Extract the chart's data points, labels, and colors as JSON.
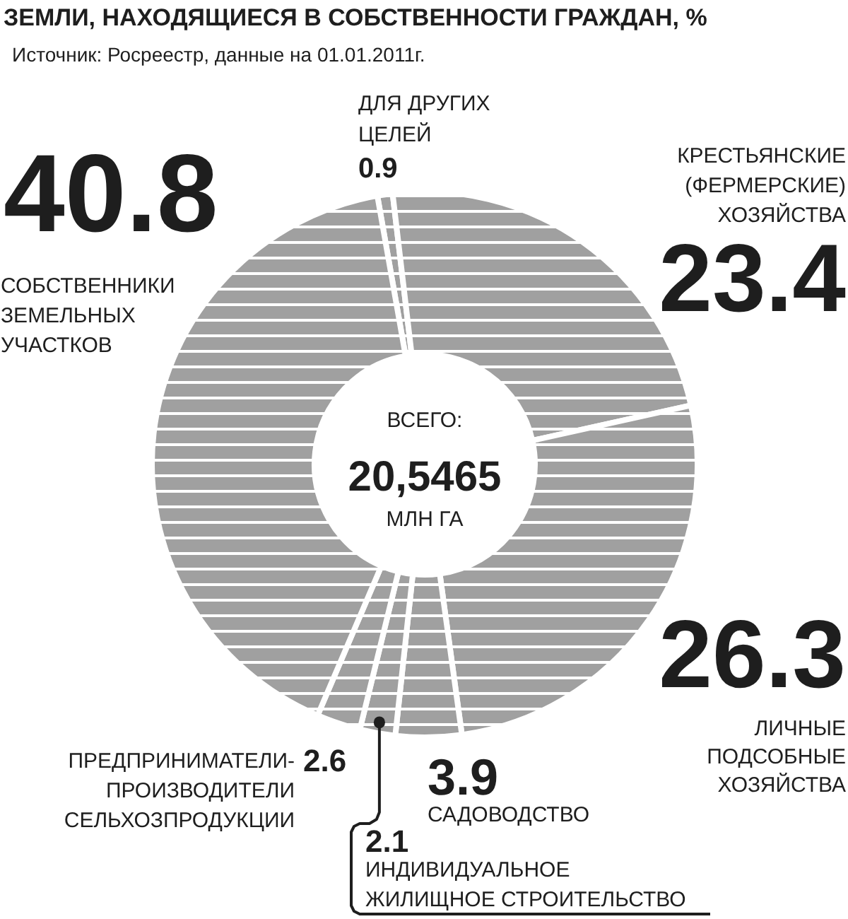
{
  "chart_data": {
    "type": "donut",
    "title": "ЗЕМЛИ, НАХОДЯЩИЕСЯ В СОБСТВЕННОСТИ ГРАЖДАН, %",
    "subtitle": "Источник: Росреестр, данные на 01.01.2011г.",
    "categories": [
      "ДЛЯ ДРУГИХ\nЦЕЛЕЙ",
      "КРЕСТЬЯНСКИЕ\n(ФЕРМЕРСКИЕ)\nХОЗЯЙСТВА",
      "ЛИЧНЫЕ\nПОДСОБНЫЕ\nХОЗЯЙСТВА",
      "САДОВОДСТВО",
      "ИНДИВИДУАЛЬНОЕ\nЖИЛИЩНОЕ СТРОИТЕЛЬСТВО",
      "ПРЕДПРИНИМАТЕЛИ-\nПРОИЗВОДИТЕЛИ\nСЕЛЬХОЗПРОДУКЦИИ",
      "СОБСТВЕННИКИ\nЗЕМЕЛЬНЫХ\nУЧАСТКОВ"
    ],
    "values": [
      0.9,
      23.4,
      26.3,
      3.9,
      2.1,
      2.6,
      40.8
    ],
    "colors": [
      "#a0a0a0",
      "#a0a0a0",
      "#a0a0a0",
      "#a0a0a0",
      "#a0a0a0",
      "#a0a0a0",
      "#a0a0a0"
    ],
    "data_labels": true,
    "annotations": [
      "ВСЕГО:",
      "20,5465",
      "МЛН ГА"
    ]
  }
}
